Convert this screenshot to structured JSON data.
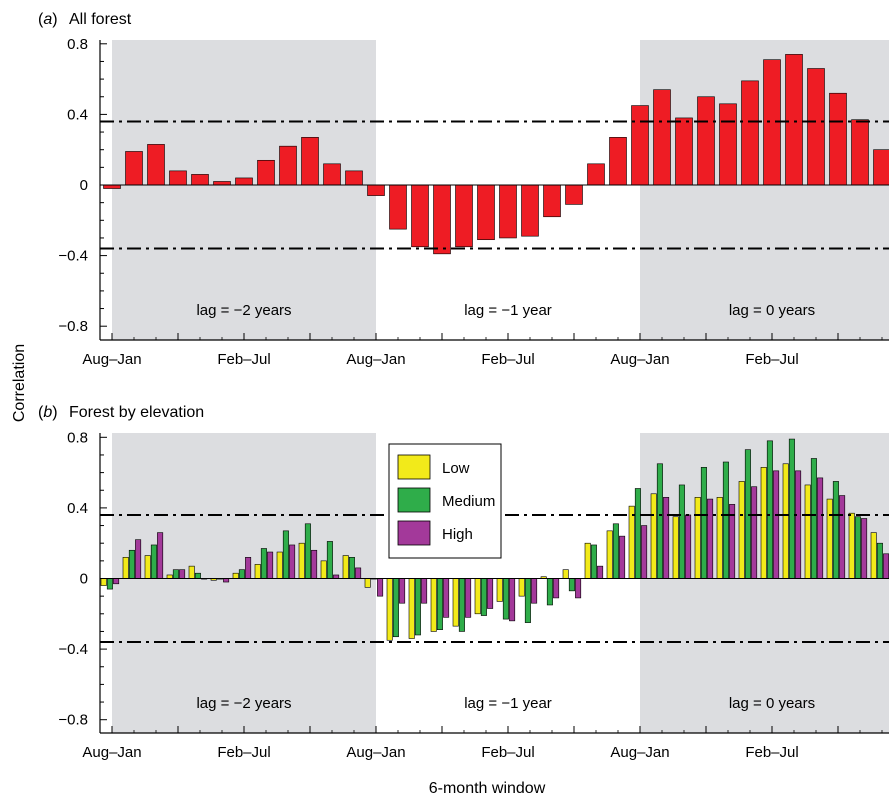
{
  "figure": {
    "ylabel": "Correlation",
    "xlabel": "6-month window",
    "colors": {
      "shade": "#dcdde0",
      "all_forest": "#ee1c24",
      "low": "#f2ea1a",
      "medium": "#2fad4a",
      "high": "#a3399a"
    }
  },
  "chart_data": [
    {
      "type": "bar",
      "panel_letter": "a",
      "title": "All forest",
      "ylim": [
        -0.85,
        0.85
      ],
      "yticks": [
        -0.8,
        -0.4,
        0,
        0.4,
        0.8
      ],
      "ytick_labels": [
        "−0.8",
        "−0.4",
        "0",
        "0.4",
        "0.8"
      ],
      "xtick_labels": [
        "Aug–Jan",
        "Feb–Jul",
        "Aug–Jan",
        "Feb–Jul",
        "Aug–Jan",
        "Feb–Jul"
      ],
      "threshold_lines": [
        0.36,
        -0.36
      ],
      "lag_labels": [
        "lag = −2 years",
        "lag = −1 year",
        "lag = 0 years"
      ],
      "shaded_lags": [
        0,
        2
      ],
      "series": [
        {
          "color_key": "all_forest",
          "values": [
            -0.02,
            0.19,
            0.23,
            0.08,
            0.06,
            0.02,
            0.04,
            0.14,
            0.22,
            0.27,
            0.12,
            0.08,
            -0.06,
            -0.25,
            -0.35,
            -0.39,
            -0.35,
            -0.31,
            -0.3,
            -0.29,
            -0.18,
            -0.11,
            0.12,
            0.27,
            0.45,
            0.54,
            0.38,
            0.5,
            0.46,
            0.59,
            0.71,
            0.74,
            0.66,
            0.52,
            0.37,
            0.2
          ]
        }
      ]
    },
    {
      "type": "bar",
      "panel_letter": "b",
      "title": "Forest by elevation",
      "ylim": [
        -0.85,
        0.85
      ],
      "yticks": [
        -0.8,
        -0.4,
        0,
        0.4,
        0.8
      ],
      "ytick_labels": [
        "−0.8",
        "−0.4",
        "0",
        "0.4",
        "0.8"
      ],
      "xtick_labels": [
        "Aug–Jan",
        "Feb–Jul",
        "Aug–Jan",
        "Feb–Jul",
        "Aug–Jan",
        "Feb–Jul"
      ],
      "threshold_lines": [
        0.36,
        -0.36
      ],
      "lag_labels": [
        "lag = −2 years",
        "lag = −1 year",
        "lag = 0 years"
      ],
      "shaded_lags": [
        0,
        2
      ],
      "legend": {
        "position": "top-center"
      },
      "series": [
        {
          "name": "Low",
          "color_key": "low",
          "values": [
            -0.04,
            0.12,
            0.13,
            0.02,
            0.07,
            -0.01,
            0.03,
            0.08,
            0.15,
            0.2,
            0.1,
            0.13,
            -0.05,
            -0.35,
            -0.34,
            -0.3,
            -0.27,
            -0.2,
            -0.13,
            -0.1,
            0.01,
            0.05,
            0.2,
            0.27,
            0.41,
            0.48,
            0.35,
            0.46,
            0.46,
            0.55,
            0.63,
            0.65,
            0.53,
            0.45,
            0.37,
            0.26
          ]
        },
        {
          "name": "Medium",
          "color_key": "medium",
          "values": [
            -0.06,
            0.16,
            0.19,
            0.05,
            0.03,
            0.0,
            0.05,
            0.17,
            0.27,
            0.31,
            0.21,
            0.12,
            0.0,
            -0.33,
            -0.32,
            -0.29,
            -0.3,
            -0.21,
            -0.23,
            -0.25,
            -0.15,
            -0.07,
            0.19,
            0.31,
            0.51,
            0.65,
            0.53,
            0.63,
            0.66,
            0.73,
            0.78,
            0.79,
            0.68,
            0.55,
            0.35,
            0.2
          ]
        },
        {
          "name": "High",
          "color_key": "high",
          "values": [
            -0.03,
            0.22,
            0.26,
            0.05,
            0.0,
            -0.02,
            0.12,
            0.15,
            0.19,
            0.16,
            0.02,
            0.06,
            -0.1,
            -0.14,
            -0.14,
            -0.22,
            -0.22,
            -0.17,
            -0.24,
            -0.14,
            -0.11,
            -0.11,
            0.07,
            0.24,
            0.3,
            0.46,
            0.36,
            0.45,
            0.42,
            0.52,
            0.61,
            0.61,
            0.57,
            0.47,
            0.34,
            0.14
          ]
        }
      ]
    }
  ]
}
